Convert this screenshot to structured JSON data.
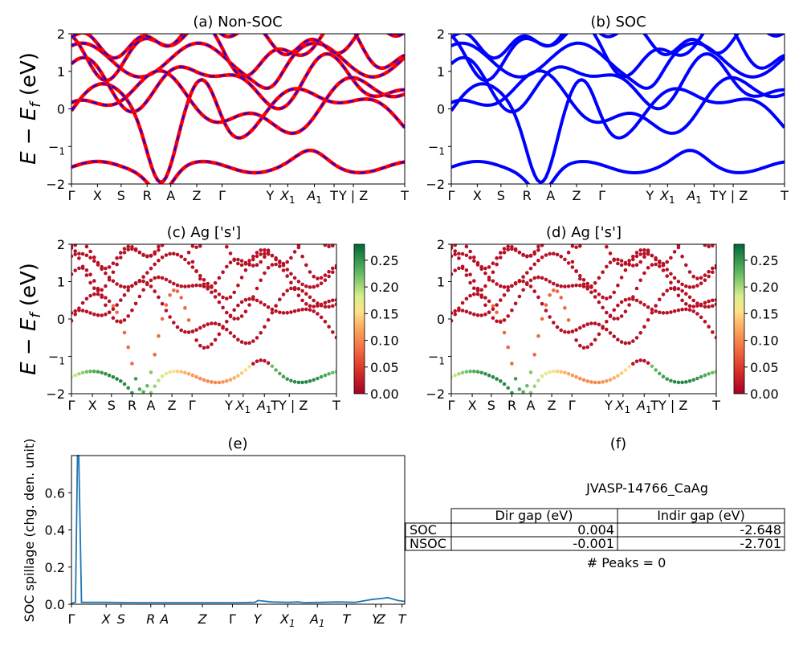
{
  "ylabel_main": "E − E",
  "ylabel_sub": "f",
  "ylabel_unit": " (eV)",
  "kpath_a": [
    "Γ",
    "X",
    "S",
    "R",
    "A",
    "Z",
    "Γ",
    "Y",
    "X1",
    "A1",
    "T",
    "Y | Z",
    "T"
  ],
  "kpath_c": [
    "Γ",
    "X",
    "S",
    "R",
    "A",
    "Z",
    "Γ",
    "Y",
    "X1",
    "A1",
    "TY | Z",
    "T"
  ],
  "kpath_e": [
    "Γ",
    "X",
    "S",
    "R",
    "A",
    "Z",
    "Γ",
    "Y",
    "X1",
    "A1",
    "T",
    "Y",
    "Z",
    "T"
  ],
  "colors": {
    "nonsoc_red": "#ff0000",
    "soc_blue": "#0000ff",
    "spillage": "#1f77b4"
  },
  "chart_data": [
    {
      "id": "a",
      "type": "line",
      "title": "(a) Non-SOC",
      "ylim": [
        -2,
        2
      ],
      "yticks": [
        -2,
        -1,
        0,
        1,
        2
      ],
      "series": [],
      "style": "red bands overlaid with blue dashed bands"
    },
    {
      "id": "b",
      "type": "line",
      "title": "(b) SOC",
      "ylim": [
        -2,
        2
      ],
      "yticks": [
        -2,
        -1,
        0,
        1,
        2
      ],
      "series": []
    },
    {
      "id": "c",
      "type": "scatter",
      "title": "(c)  Ag ['s']",
      "ylim": [
        -2,
        2
      ],
      "yticks": [
        -2,
        -1,
        0,
        1,
        2
      ],
      "colorbar": {
        "min": 0.0,
        "max": 0.28,
        "ticks": [
          "0.00",
          "0.05",
          "0.10",
          "0.15",
          "0.20",
          "0.25"
        ],
        "cmap": "RdYlGn"
      }
    },
    {
      "id": "d",
      "type": "scatter",
      "title": "(d) Ag ['s']",
      "ylim": [
        -2,
        2
      ],
      "yticks": [
        -2,
        -1,
        0,
        1,
        2
      ],
      "colorbar": {
        "min": 0.0,
        "max": 0.28,
        "ticks": [
          "0.00",
          "0.05",
          "0.10",
          "0.15",
          "0.20",
          "0.25"
        ],
        "cmap": "RdYlGn"
      }
    },
    {
      "id": "e",
      "type": "line",
      "title": "(e)",
      "ylabel": "SOC spillage (chg. den. unit)",
      "ylim": [
        0,
        0.8
      ],
      "yticks": [
        "0.0",
        "0.2",
        "0.4",
        "0.6"
      ],
      "series": [
        {
          "x": [
            0,
            0.012,
            0.018,
            0.022,
            0.03,
            0.06,
            0.1,
            0.2,
            0.3,
            0.4,
            0.5,
            0.55,
            0.56,
            0.6,
            0.65,
            0.68,
            0.7,
            0.75,
            0.8,
            0.85,
            0.9,
            0.95,
            0.98,
            1.0
          ],
          "y": [
            0.005,
            0.01,
            0.8,
            0.8,
            0.01,
            0.01,
            0.01,
            0.008,
            0.008,
            0.008,
            0.008,
            0.01,
            0.02,
            0.012,
            0.01,
            0.012,
            0.008,
            0.01,
            0.012,
            0.01,
            0.025,
            0.035,
            0.02,
            0.015
          ]
        }
      ]
    },
    {
      "id": "f",
      "type": "table",
      "title": "(f)",
      "subtitle": "JVASP-14766_CaAg",
      "columns": [
        "",
        "Dir gap (eV)",
        "Indir gap (eV)"
      ],
      "rows": [
        [
          "SOC",
          "0.004",
          "-2.648"
        ],
        [
          "NSOC",
          "-0.001",
          "-2.701"
        ]
      ],
      "footer": "# Peaks = 0"
    }
  ]
}
